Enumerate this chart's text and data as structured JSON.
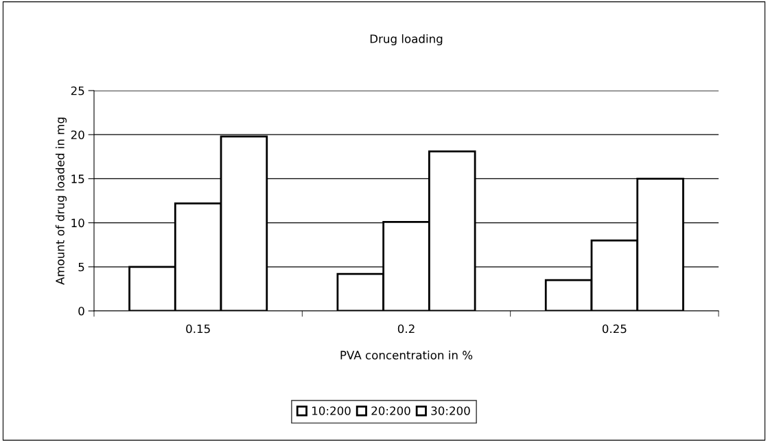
{
  "chart_data": {
    "type": "bar",
    "title": "Drug loading",
    "xlabel": "PVA concentration in %",
    "ylabel": "Amount of drug loaded in mg",
    "categories": [
      "0.15",
      "0.2",
      "0.25"
    ],
    "series": [
      {
        "name": "10:200",
        "color": "#ffffff",
        "values": [
          5.0,
          4.2,
          3.5
        ]
      },
      {
        "name": "20:200",
        "color": "#ffffff",
        "values": [
          12.2,
          10.1,
          8.0
        ]
      },
      {
        "name": "30:200",
        "color": "#ffffff",
        "values": [
          19.8,
          18.1,
          15.0
        ]
      }
    ],
    "ylim": [
      0,
      25
    ],
    "yticks": [
      0,
      5,
      10,
      15,
      20,
      25
    ],
    "grid": "y",
    "legend": "bottom"
  }
}
